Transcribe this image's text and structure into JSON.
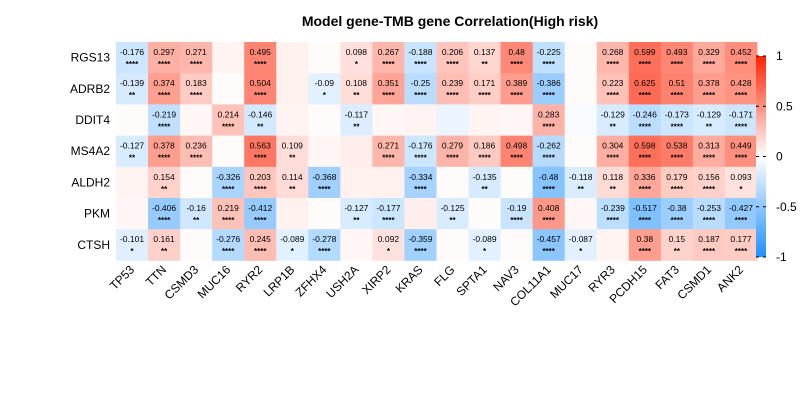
{
  "chart_data": {
    "type": "heatmap",
    "title": "Model gene-TMB gene Correlation(High risk)",
    "rows": [
      "RGS13",
      "ADRB2",
      "DDIT4",
      "MS4A2",
      "ALDH2",
      "PKM",
      "CTSH"
    ],
    "columns": [
      "TP53",
      "TTN",
      "CSMD3",
      "MUC16",
      "RYR2",
      "LRP1B",
      "ZFHX4",
      "USH2A",
      "XIRP2",
      "KRAS",
      "FLG",
      "SPTA1",
      "NAV3",
      "COL11A1",
      "MUC17",
      "RYR3",
      "PCDH15",
      "FAT3",
      "CSMD1",
      "ANK2"
    ],
    "values": [
      [
        -0.176,
        0.297,
        0.271,
        0.03,
        0.495,
        0.04,
        0.01,
        0.098,
        0.267,
        -0.188,
        0.206,
        0.137,
        0.48,
        -0.225,
        0.01,
        0.268,
        0.599,
        0.493,
        0.329,
        0.452
      ],
      [
        -0.139,
        0.374,
        0.183,
        0.01,
        0.504,
        0.04,
        -0.09,
        0.108,
        0.351,
        -0.25,
        0.239,
        0.171,
        0.389,
        -0.386,
        0.01,
        0.223,
        0.625,
        0.51,
        0.378,
        0.428
      ],
      [
        0.01,
        -0.219,
        0.02,
        0.214,
        -0.146,
        0.03,
        0.01,
        -0.117,
        0.02,
        0.03,
        -0.06,
        0.03,
        0.02,
        0.283,
        -0.02,
        -0.129,
        -0.246,
        -0.173,
        -0.129,
        -0.171
      ],
      [
        -0.127,
        0.378,
        0.236,
        0.01,
        0.563,
        0.109,
        0.02,
        0.05,
        0.271,
        -0.176,
        0.279,
        0.186,
        0.498,
        -0.262,
        0.01,
        0.304,
        0.598,
        0.538,
        0.313,
        0.449
      ],
      [
        0.03,
        0.154,
        0.01,
        -0.326,
        0.203,
        0.114,
        -0.368,
        0.04,
        0.04,
        -0.334,
        0.01,
        -0.135,
        0.01,
        -0.48,
        -0.118,
        0.118,
        0.336,
        0.179,
        0.156,
        0.093
      ],
      [
        0.02,
        -0.406,
        -0.16,
        0.219,
        -0.412,
        0.04,
        0.01,
        -0.127,
        -0.177,
        0.05,
        -0.125,
        0.01,
        -0.19,
        0.408,
        0.02,
        -0.239,
        -0.517,
        -0.38,
        -0.253,
        -0.427
      ],
      [
        -0.101,
        0.161,
        0.01,
        -0.276,
        0.245,
        -0.089,
        -0.278,
        0.02,
        0.092,
        -0.359,
        0.01,
        -0.089,
        0.01,
        -0.457,
        -0.087,
        0.03,
        0.38,
        0.15,
        0.187,
        0.177
      ]
    ],
    "labels": [
      [
        "-0.176",
        "0.297",
        "0.271",
        "",
        "0.495",
        "",
        "",
        "0.098",
        "0.267",
        "-0.188",
        "0.206",
        "0.137",
        "0.48",
        "-0.225",
        "",
        "0.268",
        "0.599",
        "0.493",
        "0.329",
        "0.452"
      ],
      [
        "-0.139",
        "0.374",
        "0.183",
        "",
        "0.504",
        "",
        "-0.09",
        "0.108",
        "0.351",
        "-0.25",
        "0.239",
        "0.171",
        "0.389",
        "-0.386",
        "",
        "0.223",
        "0.625",
        "0.51",
        "0.378",
        "0.428"
      ],
      [
        "",
        "-0.219",
        "",
        "0.214",
        "-0.146",
        "",
        "",
        "-0.117",
        "",
        "",
        "",
        "",
        "",
        "0.283",
        "",
        "-0.129",
        "-0.246",
        "-0.173",
        "-0.129",
        "-0.171"
      ],
      [
        "-0.127",
        "0.378",
        "0.236",
        "",
        "0.563",
        "0.109",
        "",
        "",
        "0.271",
        "-0.176",
        "0.279",
        "0.186",
        "0.498",
        "-0.262",
        "",
        "0.304",
        "0.598",
        "0.538",
        "0.313",
        "0.449"
      ],
      [
        "",
        "0.154",
        "",
        "-0.326",
        "0.203",
        "0.114",
        "-0.368",
        "",
        "",
        "-0.334",
        "",
        "-0.135",
        "",
        "-0.48",
        "-0.118",
        "0.118",
        "0.336",
        "0.179",
        "0.156",
        "0.093"
      ],
      [
        "",
        "-0.406",
        "-0.16",
        "0.219",
        "-0.412",
        "",
        "",
        "-0.127",
        "-0.177",
        "",
        "-0.125",
        "",
        "-0.19",
        "0.408",
        "",
        "-0.239",
        "-0.517",
        "-0.38",
        "-0.253",
        "-0.427"
      ],
      [
        "-0.101",
        "0.161",
        "",
        "-0.276",
        "0.245",
        "-0.089",
        "-0.278",
        "",
        "0.092",
        "-0.359",
        "",
        "-0.089",
        "",
        "-0.457",
        "-0.087",
        "",
        "0.38",
        "0.15",
        "0.187",
        "0.177"
      ]
    ],
    "significance": [
      [
        "****",
        "****",
        "****",
        "",
        "****",
        "",
        "",
        "*",
        "****",
        "****",
        "****",
        "**",
        "****",
        "****",
        "",
        "****",
        "****",
        "****",
        "****",
        "****"
      ],
      [
        "**",
        "****",
        "****",
        "",
        "****",
        "",
        "*",
        "**",
        "****",
        "****",
        "****",
        "****",
        "****",
        "****",
        "",
        "****",
        "****",
        "****",
        "****",
        "****"
      ],
      [
        "",
        "****",
        "",
        "****",
        "**",
        "",
        "",
        "**",
        "",
        "",
        "",
        "",
        "",
        "****",
        "",
        "**",
        "****",
        "****",
        "**",
        "****"
      ],
      [
        "**",
        "****",
        "****",
        "",
        "****",
        "**",
        "",
        "",
        "****",
        "****",
        "****",
        "****",
        "****",
        "****",
        "",
        "****",
        "****",
        "****",
        "****",
        "****"
      ],
      [
        "",
        "**",
        "",
        "****",
        "****",
        "**",
        "****",
        "",
        "",
        "****",
        "",
        "**",
        "",
        "****",
        "**",
        "**",
        "****",
        "****",
        "****",
        "*"
      ],
      [
        "",
        "****",
        "**",
        "****",
        "****",
        "",
        "",
        "**",
        "****",
        "",
        "**",
        "",
        "****",
        "****",
        "",
        "****",
        "****",
        "****",
        "****",
        "****"
      ],
      [
        "*",
        "**",
        "",
        "****",
        "****",
        "*",
        "****",
        "",
        "*",
        "****",
        "",
        "*",
        "",
        "****",
        "*",
        "",
        "****",
        "**",
        "****",
        "****"
      ]
    ],
    "legend": {
      "ticks": [
        1,
        0.5,
        0,
        -0.5,
        -1
      ],
      "tick_labels": [
        "1",
        "0.5",
        "0",
        "-0.5",
        "-1"
      ],
      "range": [
        -1,
        1
      ],
      "placement": "right"
    },
    "colors": {
      "high": "#ff2200",
      "mid": "#ffffff",
      "low": "#1e90ff"
    }
  }
}
